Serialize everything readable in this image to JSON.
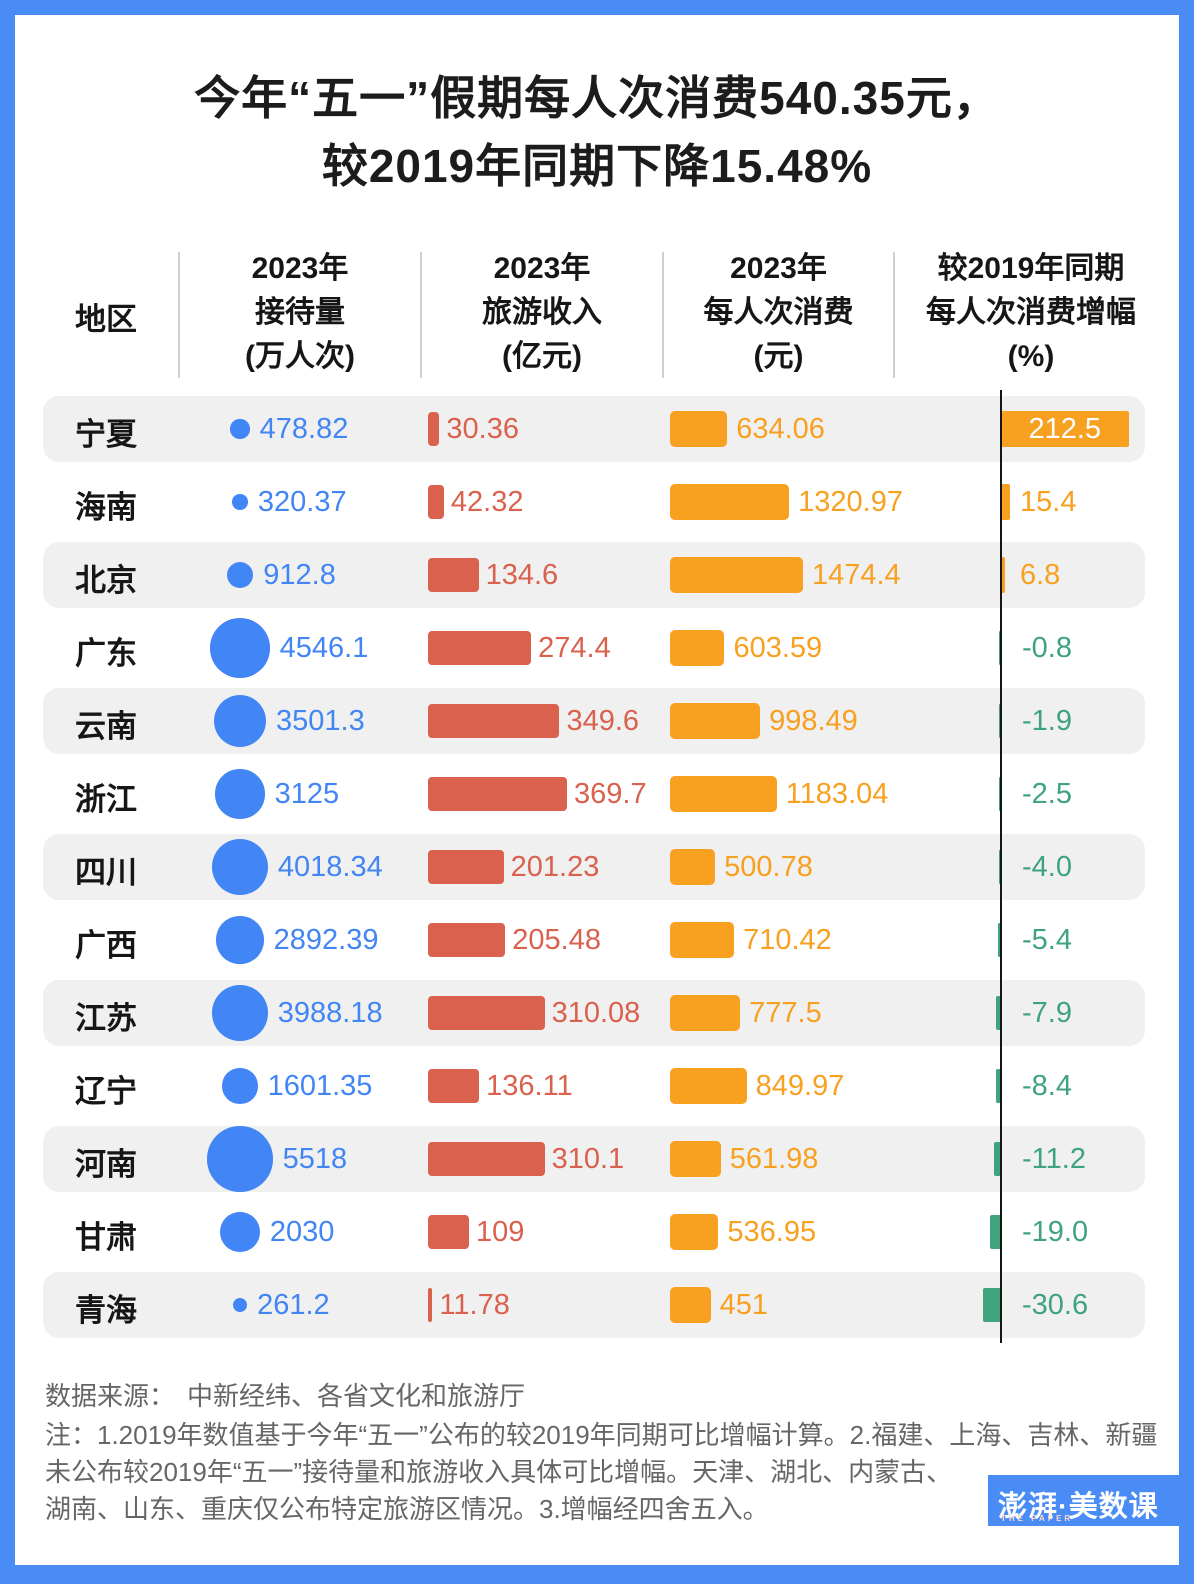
{
  "title": {
    "line1": "今年“五一”假期每人次消费540.35元，",
    "line2": "较2019年同期下降15.48%"
  },
  "header": {
    "region": "地区",
    "cols": [
      {
        "lines": [
          "2023年",
          "接待量",
          "(万人次)"
        ]
      },
      {
        "lines": [
          "2023年",
          "旅游收入",
          "(亿元)"
        ]
      },
      {
        "lines": [
          "2023年",
          "每人次消费",
          "(元)"
        ]
      },
      {
        "lines": [
          "较2019年同期",
          "每人次消费增幅",
          "(%)"
        ]
      }
    ]
  },
  "chart_data": {
    "type": "table",
    "title": "今年“五一”假期每人次消费540.35元，较2019年同期下降15.48%",
    "columns": [
      "地区",
      "2023年接待量(万人次)",
      "2023年旅游收入(亿元)",
      "2023年每人次消费(元)",
      "较2019年同期每人次消费增幅(%)"
    ],
    "marks": {
      "visitors": "blue-circle-area-scaled",
      "revenue": "red-bar",
      "spend": "orange-bar",
      "growth": "diverging-bar-orange-positive-green-negative"
    },
    "rows": [
      {
        "region": "宁夏",
        "visitors": "478.82",
        "revenue": "30.36",
        "spend": "634.06",
        "growth": "212.5"
      },
      {
        "region": "海南",
        "visitors": "320.37",
        "revenue": "42.32",
        "spend": "1320.97",
        "growth": "15.4"
      },
      {
        "region": "北京",
        "visitors": "912.8",
        "revenue": "134.6",
        "spend": "1474.4",
        "growth": "6.8"
      },
      {
        "region": "广东",
        "visitors": "4546.1",
        "revenue": "274.4",
        "spend": "603.59",
        "growth": "-0.8"
      },
      {
        "region": "云南",
        "visitors": "3501.3",
        "revenue": "349.6",
        "spend": "998.49",
        "growth": "-1.9"
      },
      {
        "region": "浙江",
        "visitors": "3125",
        "revenue": "369.7",
        "spend": "1183.04",
        "growth": "-2.5"
      },
      {
        "region": "四川",
        "visitors": "4018.34",
        "revenue": "201.23",
        "spend": "500.78",
        "growth": "-4.0"
      },
      {
        "region": "广西",
        "visitors": "2892.39",
        "revenue": "205.48",
        "spend": "710.42",
        "growth": "-5.4"
      },
      {
        "region": "江苏",
        "visitors": "3988.18",
        "revenue": "310.08",
        "spend": "777.5",
        "growth": "-7.9"
      },
      {
        "region": "辽宁",
        "visitors": "1601.35",
        "revenue": "136.11",
        "spend": "849.97",
        "growth": "-8.4"
      },
      {
        "region": "河南",
        "visitors": "5518",
        "revenue": "310.1",
        "spend": "561.98",
        "growth": "-11.2"
      },
      {
        "region": "甘肃",
        "visitors": "2030",
        "revenue": "109",
        "spend": "536.95",
        "growth": "-19.0"
      },
      {
        "region": "青海",
        "visitors": "261.2",
        "revenue": "11.78",
        "spend": "451",
        "growth": "-30.6"
      }
    ]
  },
  "footer": {
    "source_label": "数据来源：",
    "source": "中新经纬、各省文化和旅游厅",
    "notes": [
      "注：1.2019年数值基于今年“五一”公布的较2019年同期可比增幅计算。2.福建、上海、吉林、新疆",
      "未公布较2019年“五一”接待量和旅游收入具体可比增幅。天津、湖北、内蒙古、",
      "湖南、山东、重庆仅公布特定旅游区情况。3.增幅经四舍五入。"
    ]
  },
  "logo": {
    "name": "澎湃·美数课",
    "sub": "THE PAPER"
  },
  "colors": {
    "frame_blue": "#4a8cf5",
    "circle_blue": "#4285f4",
    "text_blue": "#4285f4",
    "bar_red": "#d9614e",
    "bar_orange": "#f8a01f",
    "bar_green": "#3fa37d",
    "row_gray": "#f0f0f0",
    "axis_black": "#151515"
  }
}
